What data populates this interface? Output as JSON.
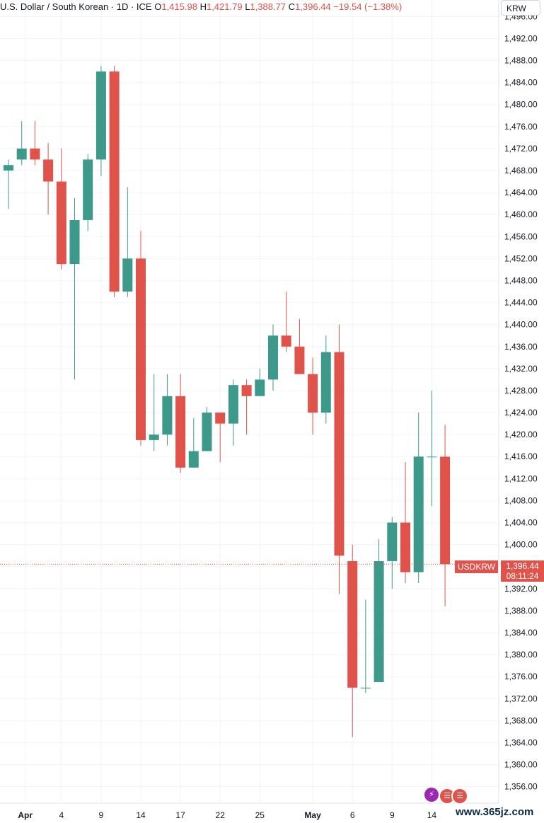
{
  "legend": {
    "symbol_text": "U.S. Dollar / South Korean · 1D · ICE",
    "o_label": "O",
    "o_value": "1,415.98",
    "h_label": "H",
    "h_value": "1,421.79",
    "l_label": "L",
    "l_value": "1,388.77",
    "c_label": "C",
    "c_value": "1,396.44",
    "change": "−19.54 (−1.38%)"
  },
  "unit_button": "KRW",
  "price_label": {
    "symbol": "USDKRW",
    "price": "1,396.44",
    "countdown": "08:11:24"
  },
  "watermark": "www.365jz.com",
  "colors": {
    "up": "#3d9a8b",
    "down": "#e0534a",
    "grid": "#f0f3fa",
    "axis_text": "#131722"
  },
  "chart_data": {
    "type": "candlestick",
    "title": "",
    "ylim": [
      1353,
      1499
    ],
    "y_ticks": [
      "1,356.00",
      "1,360.00",
      "1,364.00",
      "1,368.00",
      "1,372.00",
      "1,376.00",
      "1,380.00",
      "1,384.00",
      "1,388.00",
      "1,392.00",
      "1,396.00",
      "1,400.00",
      "1,404.00",
      "1,408.00",
      "1,412.00",
      "1,416.00",
      "1,420.00",
      "1,424.00",
      "1,428.00",
      "1,432.00",
      "1,436.00",
      "1,440.00",
      "1,444.00",
      "1,448.00",
      "1,452.00",
      "1,456.00",
      "1,460.00",
      "1,464.00",
      "1,468.00",
      "1,472.00",
      "1,476.00",
      "1,480.00",
      "1,484.00",
      "1,488.00",
      "1,492.00",
      "1,496.00"
    ],
    "x_tick_labels": [
      {
        "label": "Apr",
        "bold": true,
        "after_index": 1
      },
      {
        "label": "4",
        "at_index": 4
      },
      {
        "label": "9",
        "at_index": 7
      },
      {
        "label": "14",
        "at_index": 10
      },
      {
        "label": "17",
        "at_index": 13
      },
      {
        "label": "22",
        "at_index": 16
      },
      {
        "label": "25",
        "at_index": 19
      },
      {
        "label": "May",
        "bold": true,
        "at_index": 23
      },
      {
        "label": "6",
        "at_index": 26
      },
      {
        "label": "9",
        "at_index": 29
      },
      {
        "label": "14",
        "at_index": 32
      }
    ],
    "candles": [
      {
        "o": 1468,
        "h": 1470,
        "l": 1461,
        "c": 1469
      },
      {
        "o": 1470,
        "h": 1477,
        "l": 1469,
        "c": 1472
      },
      {
        "o": 1472,
        "h": 1477,
        "l": 1469,
        "c": 1470
      },
      {
        "o": 1470,
        "h": 1473,
        "l": 1460,
        "c": 1466
      },
      {
        "o": 1466,
        "h": 1472,
        "l": 1450,
        "c": 1451
      },
      {
        "o": 1451,
        "h": 1463,
        "l": 1430,
        "c": 1459
      },
      {
        "o": 1459,
        "h": 1471,
        "l": 1457,
        "c": 1470
      },
      {
        "o": 1470,
        "h": 1487,
        "l": 1467,
        "c": 1486
      },
      {
        "o": 1486,
        "h": 1487,
        "l": 1445,
        "c": 1446
      },
      {
        "o": 1446,
        "h": 1465,
        "l": 1445,
        "c": 1452
      },
      {
        "o": 1452,
        "h": 1457,
        "l": 1418,
        "c": 1419
      },
      {
        "o": 1419,
        "h": 1431,
        "l": 1417,
        "c": 1420
      },
      {
        "o": 1420,
        "h": 1431,
        "l": 1418,
        "c": 1427
      },
      {
        "o": 1427,
        "h": 1431,
        "l": 1413,
        "c": 1414
      },
      {
        "o": 1414,
        "h": 1423,
        "l": 1414,
        "c": 1417
      },
      {
        "o": 1417,
        "h": 1425,
        "l": 1417,
        "c": 1424
      },
      {
        "o": 1424,
        "h": 1424,
        "l": 1415,
        "c": 1422
      },
      {
        "o": 1422,
        "h": 1430,
        "l": 1418,
        "c": 1429
      },
      {
        "o": 1429,
        "h": 1430,
        "l": 1420,
        "c": 1427
      },
      {
        "o": 1427,
        "h": 1432,
        "l": 1427,
        "c": 1430
      },
      {
        "o": 1430,
        "h": 1440,
        "l": 1428,
        "c": 1438
      },
      {
        "o": 1438,
        "h": 1446,
        "l": 1435,
        "c": 1436
      },
      {
        "o": 1436,
        "h": 1441,
        "l": 1431,
        "c": 1431
      },
      {
        "o": 1431,
        "h": 1434,
        "l": 1420,
        "c": 1424
      },
      {
        "o": 1424,
        "h": 1438,
        "l": 1422,
        "c": 1435
      },
      {
        "o": 1435,
        "h": 1440,
        "l": 1391,
        "c": 1398
      },
      {
        "o": 1397,
        "h": 1400,
        "l": 1365,
        "c": 1374
      },
      {
        "o": 1374,
        "h": 1390,
        "l": 1373,
        "c": 1374
      },
      {
        "o": 1375,
        "h": 1401,
        "l": 1375,
        "c": 1397
      },
      {
        "o": 1397,
        "h": 1405,
        "l": 1392,
        "c": 1404
      },
      {
        "o": 1404,
        "h": 1415,
        "l": 1393,
        "c": 1395
      },
      {
        "o": 1395,
        "h": 1424,
        "l": 1393,
        "c": 1416
      },
      {
        "o": 1416,
        "h": 1428,
        "l": 1407,
        "c": 1416
      },
      {
        "o": 1415.98,
        "h": 1421.79,
        "l": 1388.77,
        "c": 1396.44
      }
    ],
    "last_price": 1396.44,
    "grid": true
  }
}
